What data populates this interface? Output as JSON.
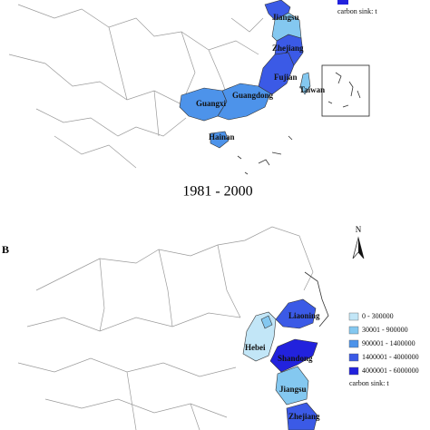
{
  "panel_a": {
    "labels": [
      "Jiangsu",
      "Zhejiang",
      "Fujian",
      "Taiwan",
      "Guangdong",
      "Guangxi",
      "Hainan"
    ],
    "legend_unit": "carbon sink: t",
    "caption": "1981 - 2000"
  },
  "panel_b": {
    "letter": "B",
    "north": "N",
    "legend": [
      {
        "label": "0 - 300000",
        "color": "#c2e6f7"
      },
      {
        "label": "30001 - 900000",
        "color": "#84c8f0"
      },
      {
        "label": "900001 - 1400000",
        "color": "#4d93ea"
      },
      {
        "label": "1400001 - 4000000",
        "color": "#3b5ae6"
      },
      {
        "label": "4000001 - 6000000",
        "color": "#2222dd"
      }
    ],
    "legend_unit": "carbon sink: t",
    "labels": [
      "Liaoning",
      "Hebei",
      "Shandong",
      "Jiangsu",
      "Zhejiang"
    ]
  }
}
